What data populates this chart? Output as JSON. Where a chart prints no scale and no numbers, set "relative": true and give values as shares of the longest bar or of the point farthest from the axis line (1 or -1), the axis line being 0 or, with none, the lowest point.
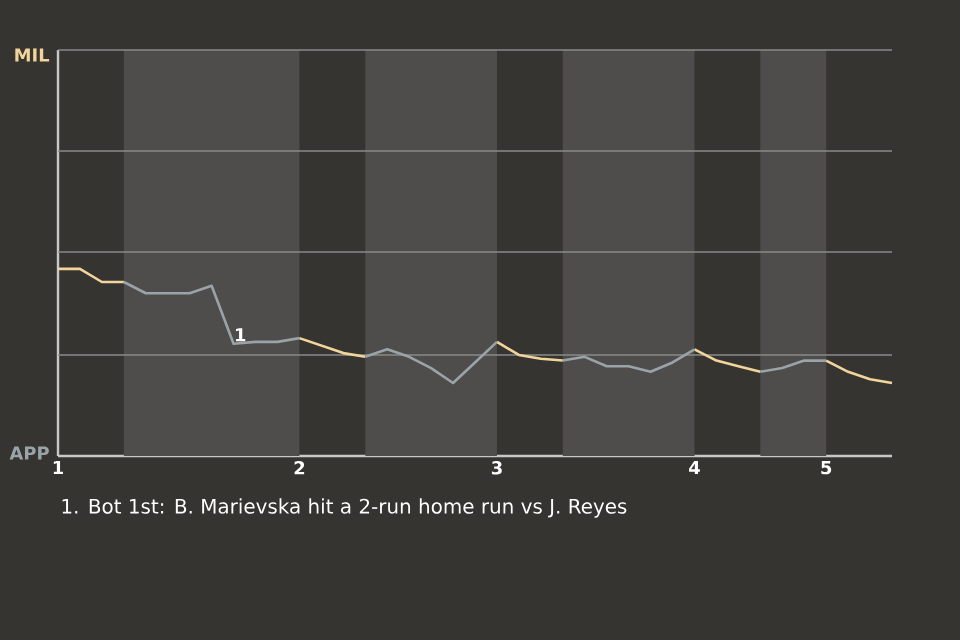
{
  "chart_data": {
    "type": "line",
    "relative": true,
    "categories": [
      "1",
      null,
      null,
      null,
      null,
      null,
      null,
      null,
      null,
      null,
      null,
      "2",
      null,
      null,
      null,
      null,
      null,
      null,
      null,
      null,
      "3",
      null,
      null,
      null,
      null,
      null,
      null,
      null,
      null,
      "4",
      null,
      null,
      null,
      null,
      null,
      "5",
      null,
      null,
      null
    ],
    "ref_lines": [
      {
        "axis": "y",
        "value": 0.54,
        "color": "#8a8a88"
      },
      {
        "axis": "y",
        "value": 1.09,
        "color": "#8a8a88"
      },
      {
        "axis": "y",
        "value": 1.63,
        "color": "#8a8a88"
      },
      {
        "axis": "y",
        "value": 2.17,
        "color": "#8a8a88"
      }
    ],
    "series": [
      {
        "color": "#f2d59b",
        "values": [
          1,
          1,
          0.93,
          0.93,
          null,
          null,
          null,
          null,
          null,
          null,
          null,
          0.63,
          0.59,
          0.55,
          0.53,
          null,
          null,
          null,
          null,
          null,
          0.61,
          0.54,
          0.52,
          0.51,
          null,
          null,
          null,
          null,
          null,
          0.57,
          0.51,
          0.48,
          0.45,
          null,
          null,
          0.51,
          0.45,
          0.41,
          0.39
        ]
      },
      {
        "color": "#9aa3a8",
        "values": [
          null,
          null,
          null,
          0.93,
          0.87,
          0.87,
          0.87,
          0.91,
          0.6,
          0.61,
          0.61,
          0.63,
          null,
          null,
          0.53,
          0.57,
          0.53,
          0.47,
          0.39,
          0.5,
          0.61,
          null,
          null,
          0.51,
          0.53,
          0.48,
          0.48,
          0.45,
          0.5,
          0.57,
          null,
          null,
          0.45,
          0.47,
          0.51,
          0.51,
          null,
          null,
          null
        ]
      }
    ],
    "annotations": [
      {
        "text": "1",
        "y": 0.6
      },
      "MIL",
      "APP",
      "1. Bot 1st: B. Marievska hit a 2-run home run vs J. Reyes"
    ]
  }
}
